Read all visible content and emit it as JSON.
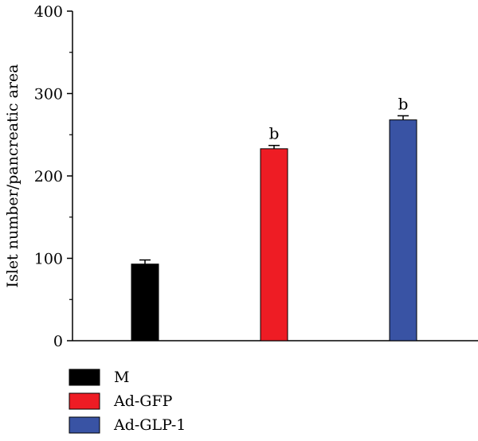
{
  "chart_data": {
    "type": "bar",
    "categories": [
      "M",
      "Ad-GFP",
      "Ad-GLP-1"
    ],
    "series": [
      {
        "name": "M",
        "value": 93,
        "error": 5,
        "color": "#000000",
        "annotation": ""
      },
      {
        "name": "Ad-GFP",
        "value": 233,
        "error": 4,
        "color": "#ee1c24",
        "annotation": "b"
      },
      {
        "name": "Ad-GLP-1",
        "value": 268,
        "error": 5,
        "color": "#3953a4",
        "annotation": "b"
      }
    ],
    "ylabel": "Islet number/pancreatic area",
    "xlabel": "",
    "ylim": [
      0,
      400
    ],
    "yticks": [
      0,
      100,
      200,
      300,
      400
    ],
    "minor_ticks_per_interval": 2,
    "grid": false,
    "legend_position": "bottom-left"
  }
}
